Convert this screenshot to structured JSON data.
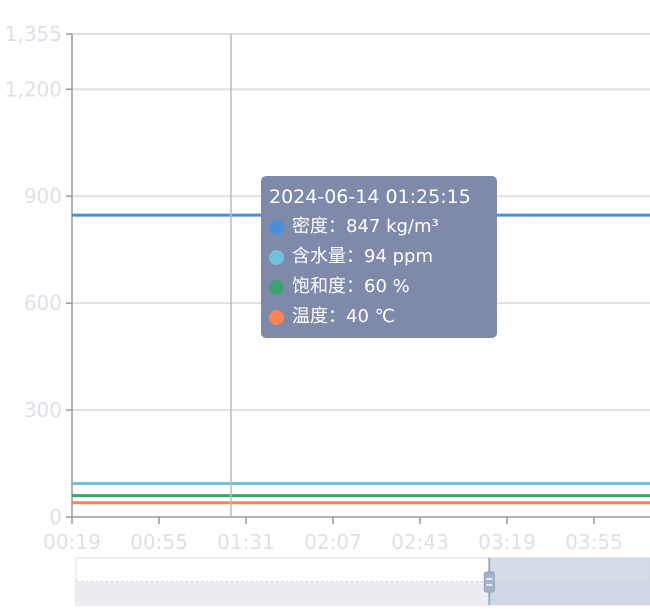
{
  "chart_data": {
    "type": "line",
    "x": [
      "00:19",
      "00:55",
      "01:31",
      "02:07",
      "02:43",
      "03:19",
      "03:55"
    ],
    "x_tick_labels": [
      "00:19",
      "00:55",
      "01:31",
      "02:07",
      "02:43",
      "03:19",
      "03:55"
    ],
    "y_tick_labels": [
      "0",
      "300",
      "600",
      "900",
      "1,200",
      "1,355"
    ],
    "ylim": [
      0,
      1355
    ],
    "grid": true,
    "series": [
      {
        "name": "密度",
        "unit": "kg/m³",
        "color": "#4a90d9",
        "values": [
          847,
          847,
          847,
          847,
          847,
          847,
          847
        ]
      },
      {
        "name": "含水量",
        "unit": "ppm",
        "color": "#73c0de",
        "values": [
          94,
          94,
          94,
          94,
          94,
          94,
          94
        ]
      },
      {
        "name": "饱和度",
        "unit": "%",
        "color": "#3ba272",
        "values": [
          60,
          60,
          60,
          60,
          60,
          60,
          60
        ]
      },
      {
        "name": "温度",
        "unit": "℃",
        "color": "#fc8452",
        "values": [
          40,
          40,
          40,
          40,
          40,
          40,
          40
        ]
      }
    ],
    "tooltip": {
      "title": "2024-06-14 01:25:15",
      "rows": [
        {
          "label": "密度：847 kg/m³",
          "color": "#4a90d9"
        },
        {
          "label": "含水量：94 ppm",
          "color": "#73c0de"
        },
        {
          "label": "饱和度：60 %",
          "color": "#3ba272"
        },
        {
          "label": "温度：40 ℃",
          "color": "#fc8452"
        }
      ]
    },
    "cursor_time": "01:25:15",
    "datazoom": {
      "start_percent": 0,
      "end_percent": 72
    }
  }
}
